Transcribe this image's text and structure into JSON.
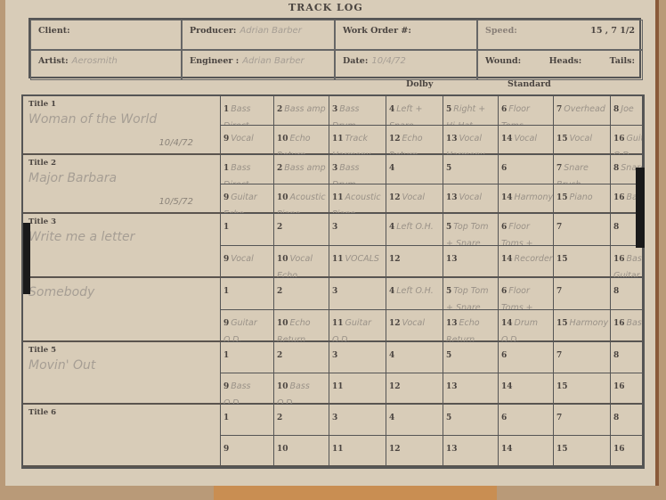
{
  "heading": "TRACK LOG",
  "header": {
    "client": {
      "label": "Client:",
      "value": ""
    },
    "producer": {
      "label": "Producer:",
      "value": "Adrian Barber"
    },
    "work_order": {
      "label": "Work Order #:",
      "value": ""
    },
    "speed": {
      "label": "Speed:",
      "value": "15 , 7 1/2"
    },
    "artist": {
      "label": "Artist:",
      "value": "Aerosmith"
    },
    "engineer": {
      "label": "Engineer :",
      "value": "Adrian Barber"
    },
    "date": {
      "label": "Date:",
      "value": "10/4/72"
    },
    "wound": {
      "label": "Wound:",
      "heads": "Heads:",
      "tails": "Tails:"
    }
  },
  "noise_reduction": {
    "dolby": "Dolby",
    "standard": "Standard"
  },
  "titles": [
    {
      "label": "Title 1",
      "name": "Woman of the World",
      "date": "10/4/72",
      "tracks": [
        "Bass Direct",
        "Bass amp",
        "Bass Drum",
        "Left + Snare",
        "Right + Hi-Hat",
        "Floor Toms",
        "Overhead",
        "Joe",
        "Vocal",
        "Echo Return Vocal",
        "Track Harmony",
        "Echo Return Harmony",
        "Vocal Harmony",
        "Vocal",
        "Vocal",
        "Guitar O.D."
      ]
    },
    {
      "label": "Title 2",
      "name": "Major Barbara",
      "date": "10/5/72",
      "tracks": [
        "Bass Direct",
        "Bass amp",
        "Bass Drum",
        "",
        "",
        "",
        "Snare Brush",
        "Snare",
        "Guitar Echo",
        "Acoustic Piano",
        "Acoustic Piano",
        "Vocal",
        "Vocal",
        "Harmony",
        "Piano",
        "Bass"
      ]
    },
    {
      "label": "Title 3",
      "name": "Write me a letter",
      "date": "",
      "tracks": [
        "",
        "",
        "",
        "Left O.H.",
        "Top Tom + Snare",
        "Floor Toms + Bass Drum",
        "",
        "",
        "Vocal",
        "Vocal Echo",
        "VOCALS",
        "",
        "",
        "Recorder",
        "",
        "Bass Guitar"
      ]
    },
    {
      "label": "",
      "name": "Somebody",
      "date": "",
      "tracks": [
        "",
        "",
        "",
        "Left O.H.",
        "Top Tom + Snare",
        "Floor Toms + Bass Drum",
        "",
        "",
        "Guitar O.D.",
        "Echo Return Guitar",
        "Guitar O.D.",
        "Vocal",
        "Echo Return Vocal",
        "Drum O.D.",
        "Harmony",
        "Bass"
      ]
    },
    {
      "label": "Title 5",
      "name": "Movin' Out",
      "date": "",
      "tracks": [
        "",
        "",
        "",
        "",
        "",
        "",
        "",
        "",
        "Bass O.D.",
        "Bass O.D.",
        "",
        "",
        "",
        "",
        "",
        ""
      ]
    },
    {
      "label": "Title 6",
      "name": "",
      "date": "",
      "tracks": [
        "",
        "",
        "",
        "",
        "",
        "",
        "",
        "",
        "",
        "",
        "",
        "",
        "",
        "",
        "",
        ""
      ]
    }
  ]
}
